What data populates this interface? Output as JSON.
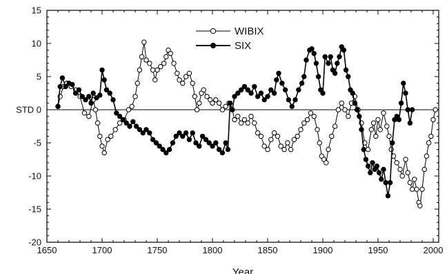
{
  "chart_data": {
    "type": "line",
    "title": "",
    "xlabel": "Year",
    "ylabel": "STD",
    "xlim": [
      1650,
      2005
    ],
    "ylim": [
      -20,
      15
    ],
    "x_ticks": [
      1650,
      1700,
      1750,
      1800,
      1850,
      1900,
      1950,
      2000
    ],
    "y_ticks": [
      -20,
      -15,
      -10,
      -5,
      0,
      5,
      10,
      15
    ],
    "y_tick_labels": [
      "-20",
      "-15",
      "-10",
      "-5",
      "STD 0",
      "5",
      "10",
      "15"
    ],
    "grid": false,
    "zero_line": true,
    "legend_position": "top-center",
    "series": [
      {
        "name": "WIBIX",
        "marker": "open-circle",
        "color": "#000000",
        "points": [
          [
            1660,
            0.5
          ],
          [
            1662,
            2
          ],
          [
            1665,
            3.5
          ],
          [
            1668,
            4
          ],
          [
            1672,
            3.5
          ],
          [
            1676,
            3
          ],
          [
            1680,
            2
          ],
          [
            1684,
            -0.5
          ],
          [
            1688,
            -1
          ],
          [
            1692,
            1.5
          ],
          [
            1694,
            0
          ],
          [
            1696,
            -2
          ],
          [
            1698,
            -4
          ],
          [
            1700,
            -5.5
          ],
          [
            1702,
            -6.5
          ],
          [
            1705,
            -4.5
          ],
          [
            1708,
            -4
          ],
          [
            1712,
            -3
          ],
          [
            1716,
            -2
          ],
          [
            1720,
            -1.5
          ],
          [
            1724,
            0
          ],
          [
            1727,
            0.5
          ],
          [
            1730,
            2
          ],
          [
            1732,
            4
          ],
          [
            1734,
            6
          ],
          [
            1736,
            8
          ],
          [
            1738,
            10.2
          ],
          [
            1740,
            7.5
          ],
          [
            1743,
            7
          ],
          [
            1746,
            6
          ],
          [
            1748,
            4.5
          ],
          [
            1750,
            6
          ],
          [
            1753,
            6.5
          ],
          [
            1756,
            7
          ],
          [
            1758,
            8
          ],
          [
            1760,
            9
          ],
          [
            1762,
            8.5
          ],
          [
            1765,
            7
          ],
          [
            1768,
            5.5
          ],
          [
            1770,
            4.5
          ],
          [
            1773,
            4
          ],
          [
            1776,
            5
          ],
          [
            1779,
            5.5
          ],
          [
            1782,
            4
          ],
          [
            1784,
            2
          ],
          [
            1786,
            0
          ],
          [
            1788,
            1
          ],
          [
            1790,
            2.5
          ],
          [
            1792,
            3
          ],
          [
            1795,
            2
          ],
          [
            1798,
            1.5
          ],
          [
            1800,
            1
          ],
          [
            1803,
            1.5
          ],
          [
            1806,
            1
          ],
          [
            1809,
            0
          ],
          [
            1812,
            0.5
          ],
          [
            1815,
            1
          ],
          [
            1818,
            0
          ],
          [
            1820,
            -1.5
          ],
          [
            1823,
            -1
          ],
          [
            1826,
            -2
          ],
          [
            1829,
            -1.5
          ],
          [
            1832,
            -2
          ],
          [
            1835,
            -1
          ],
          [
            1838,
            -2
          ],
          [
            1841,
            -3.5
          ],
          [
            1844,
            -4
          ],
          [
            1847,
            -5.5
          ],
          [
            1850,
            -6
          ],
          [
            1853,
            -4.5
          ],
          [
            1856,
            -3.5
          ],
          [
            1859,
            -4
          ],
          [
            1862,
            -5.5
          ],
          [
            1865,
            -6
          ],
          [
            1868,
            -5
          ],
          [
            1871,
            -6
          ],
          [
            1874,
            -4.5
          ],
          [
            1877,
            -4
          ],
          [
            1880,
            -3
          ],
          [
            1883,
            -2
          ],
          [
            1886,
            -1.5
          ],
          [
            1889,
            -0.5
          ],
          [
            1892,
            -1
          ],
          [
            1895,
            -3
          ],
          [
            1897,
            -5
          ],
          [
            1899,
            -7
          ],
          [
            1901,
            -7.5
          ],
          [
            1903,
            -8
          ],
          [
            1905,
            -6
          ],
          [
            1908,
            -4
          ],
          [
            1911,
            -2.5
          ],
          [
            1914,
            0
          ],
          [
            1917,
            1
          ],
          [
            1920,
            0
          ],
          [
            1923,
            -1
          ],
          [
            1926,
            1
          ],
          [
            1929,
            2
          ],
          [
            1932,
            0
          ],
          [
            1935,
            -2
          ],
          [
            1938,
            -5
          ],
          [
            1941,
            -6
          ],
          [
            1944,
            -3
          ],
          [
            1946,
            -2
          ],
          [
            1948,
            -4
          ],
          [
            1950,
            -1.5
          ],
          [
            1952,
            -3
          ],
          [
            1955,
            -0.5
          ],
          [
            1958,
            -2.5
          ],
          [
            1960,
            -4
          ],
          [
            1962,
            -6
          ],
          [
            1964,
            -7
          ],
          [
            1967,
            -8
          ],
          [
            1970,
            -9
          ],
          [
            1972,
            -10
          ],
          [
            1975,
            -7.5
          ],
          [
            1977,
            -9.5
          ],
          [
            1979,
            -11
          ],
          [
            1981,
            -12
          ],
          [
            1983,
            -10.5
          ],
          [
            1985,
            -12
          ],
          [
            1987,
            -14
          ],
          [
            1988,
            -14.5
          ],
          [
            1990,
            -12
          ],
          [
            1992,
            -9
          ],
          [
            1994,
            -7
          ],
          [
            1996,
            -5
          ],
          [
            1998,
            -4
          ],
          [
            2000,
            -1.5
          ],
          [
            2002,
            0
          ]
        ]
      },
      {
        "name": "SIX",
        "marker": "filled-circle",
        "color": "#000000",
        "points": [
          [
            1660,
            0.5
          ],
          [
            1662,
            3.5
          ],
          [
            1664,
            4.8
          ],
          [
            1667,
            3.5
          ],
          [
            1670,
            4
          ],
          [
            1673,
            3.8
          ],
          [
            1676,
            2.5
          ],
          [
            1679,
            3
          ],
          [
            1682,
            2
          ],
          [
            1685,
            1.5
          ],
          [
            1688,
            2
          ],
          [
            1690,
            1
          ],
          [
            1692,
            2.5
          ],
          [
            1695,
            1.8
          ],
          [
            1698,
            2.2
          ],
          [
            1700,
            6
          ],
          [
            1702,
            4.5
          ],
          [
            1704,
            3
          ],
          [
            1707,
            2.5
          ],
          [
            1710,
            1.5
          ],
          [
            1713,
            -0.5
          ],
          [
            1716,
            -1
          ],
          [
            1719,
            -1.5
          ],
          [
            1722,
            -2
          ],
          [
            1725,
            -2.5
          ],
          [
            1728,
            -1.8
          ],
          [
            1731,
            -2.5
          ],
          [
            1734,
            -3
          ],
          [
            1737,
            -3.5
          ],
          [
            1740,
            -3
          ],
          [
            1743,
            -3.5
          ],
          [
            1746,
            -4.5
          ],
          [
            1749,
            -5
          ],
          [
            1752,
            -5.5
          ],
          [
            1755,
            -6
          ],
          [
            1758,
            -6.5
          ],
          [
            1761,
            -6
          ],
          [
            1764,
            -5
          ],
          [
            1767,
            -4
          ],
          [
            1770,
            -3.5
          ],
          [
            1773,
            -4
          ],
          [
            1776,
            -3.5
          ],
          [
            1779,
            -4.5
          ],
          [
            1782,
            -3.5
          ],
          [
            1785,
            -5
          ],
          [
            1788,
            -5.5
          ],
          [
            1791,
            -4
          ],
          [
            1794,
            -4.5
          ],
          [
            1797,
            -5
          ],
          [
            1800,
            -5.5
          ],
          [
            1803,
            -5
          ],
          [
            1806,
            -6
          ],
          [
            1809,
            -6.5
          ],
          [
            1812,
            -5
          ],
          [
            1814,
            -6
          ],
          [
            1816,
            1
          ],
          [
            1818,
            0
          ],
          [
            1820,
            2
          ],
          [
            1823,
            2.5
          ],
          [
            1826,
            3
          ],
          [
            1829,
            3.5
          ],
          [
            1832,
            3
          ],
          [
            1835,
            2.5
          ],
          [
            1838,
            3.5
          ],
          [
            1841,
            2
          ],
          [
            1844,
            2.5
          ],
          [
            1847,
            1.5
          ],
          [
            1850,
            2
          ],
          [
            1853,
            3
          ],
          [
            1856,
            2.5
          ],
          [
            1858,
            4.5
          ],
          [
            1860,
            5.5
          ],
          [
            1863,
            4
          ],
          [
            1866,
            3
          ],
          [
            1869,
            1.5
          ],
          [
            1872,
            0.5
          ],
          [
            1875,
            1.5
          ],
          [
            1878,
            3
          ],
          [
            1881,
            4
          ],
          [
            1883,
            5
          ],
          [
            1885,
            7.5
          ],
          [
            1888,
            9
          ],
          [
            1890,
            9.2
          ],
          [
            1892,
            8.5
          ],
          [
            1894,
            7
          ],
          [
            1896,
            5
          ],
          [
            1898,
            3
          ],
          [
            1900,
            2.5
          ],
          [
            1902,
            8
          ],
          [
            1905,
            7
          ],
          [
            1907,
            8
          ],
          [
            1909,
            6
          ],
          [
            1911,
            5.5
          ],
          [
            1913,
            7
          ],
          [
            1915,
            8
          ],
          [
            1917,
            9.5
          ],
          [
            1919,
            9
          ],
          [
            1921,
            6
          ],
          [
            1923,
            5
          ],
          [
            1925,
            3
          ],
          [
            1927,
            2.5
          ],
          [
            1929,
            1
          ],
          [
            1931,
            0
          ],
          [
            1933,
            -1
          ],
          [
            1935,
            -3
          ],
          [
            1937,
            -6
          ],
          [
            1939,
            -7.5
          ],
          [
            1941,
            -8.5
          ],
          [
            1943,
            -9.5
          ],
          [
            1945,
            -8
          ],
          [
            1947,
            -9
          ],
          [
            1949,
            -8.5
          ],
          [
            1951,
            -9.5
          ],
          [
            1953,
            -10.5
          ],
          [
            1955,
            -9
          ],
          [
            1957,
            -11
          ],
          [
            1959,
            -13
          ],
          [
            1961,
            -11
          ],
          [
            1963,
            -5
          ],
          [
            1965,
            -1.5
          ],
          [
            1967,
            -1
          ],
          [
            1969,
            -1.5
          ],
          [
            1971,
            1
          ],
          [
            1973,
            4
          ],
          [
            1975,
            2.5
          ],
          [
            1977,
            0
          ],
          [
            1979,
            -2
          ],
          [
            1981,
            0
          ]
        ]
      }
    ]
  }
}
